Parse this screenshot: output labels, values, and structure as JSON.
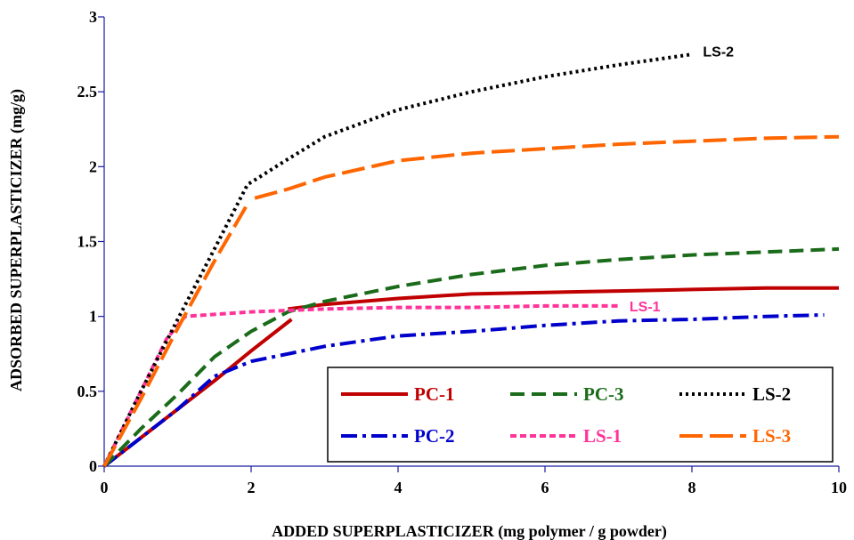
{
  "chart_data": {
    "type": "line",
    "title": "",
    "xlabel": "ADDED SUPERPLASTICIZER (mg polymer / g powder)",
    "ylabel": "ADSORBED SUPERPLASTICIZER (mg/g)",
    "xlim": [
      0,
      10
    ],
    "ylim": [
      0,
      3
    ],
    "xticks": [
      "0",
      "2",
      "4",
      "6",
      "8",
      "10"
    ],
    "yticks": [
      "0",
      "0.5",
      "1",
      "1.5",
      "2",
      "2.5",
      "3"
    ],
    "grid": false,
    "legend_position": "bottom-right",
    "series": [
      {
        "name": "PC-1",
        "color": "#c00000",
        "dash": "solid",
        "segments": [
          [
            [
              0,
              0
            ],
            [
              0.5,
              0.19
            ],
            [
              1.0,
              0.38
            ],
            [
              1.5,
              0.57
            ],
            [
              2.0,
              0.77
            ],
            [
              2.55,
              0.98
            ]
          ],
          [
            [
              2.5,
              1.05
            ],
            [
              3.0,
              1.08
            ],
            [
              4.0,
              1.12
            ],
            [
              5.0,
              1.15
            ],
            [
              6.0,
              1.16
            ],
            [
              7.0,
              1.17
            ],
            [
              8.0,
              1.18
            ],
            [
              9.0,
              1.19
            ],
            [
              10.0,
              1.19
            ]
          ]
        ]
      },
      {
        "name": "PC-2",
        "color": "#0000cc",
        "dash": "dashdot",
        "segments": [
          [
            [
              0,
              0
            ],
            [
              0.5,
              0.19
            ],
            [
              1.0,
              0.38
            ],
            [
              1.5,
              0.6
            ],
            [
              2.0,
              0.7
            ],
            [
              2.5,
              0.75
            ],
            [
              3.0,
              0.8
            ],
            [
              4.0,
              0.87
            ],
            [
              5.0,
              0.9
            ],
            [
              6.0,
              0.94
            ],
            [
              7.0,
              0.97
            ],
            [
              8.0,
              0.98
            ],
            [
              9.0,
              1.0
            ],
            [
              9.8,
              1.01
            ]
          ]
        ]
      },
      {
        "name": "PC-3",
        "color": "#1a6b1a",
        "dash": "dashed",
        "segments": [
          [
            [
              0,
              0
            ],
            [
              0.5,
              0.25
            ],
            [
              1.0,
              0.48
            ],
            [
              1.5,
              0.73
            ],
            [
              2.0,
              0.9
            ],
            [
              2.5,
              1.03
            ],
            [
              3.0,
              1.1
            ],
            [
              4.0,
              1.2
            ],
            [
              5.0,
              1.28
            ],
            [
              6.0,
              1.34
            ],
            [
              7.0,
              1.38
            ],
            [
              8.0,
              1.41
            ],
            [
              9.0,
              1.43
            ],
            [
              10.0,
              1.45
            ]
          ]
        ]
      },
      {
        "name": "LS-1",
        "color": "#ff3399",
        "dash": "short-dashed",
        "segments": [
          [
            [
              0,
              0
            ],
            [
              0.3,
              0.3
            ],
            [
              0.6,
              0.6
            ],
            [
              0.85,
              0.85
            ],
            [
              1.1,
              1.0
            ],
            [
              2.0,
              1.03
            ],
            [
              3.0,
              1.05
            ],
            [
              4.0,
              1.06
            ],
            [
              5.0,
              1.06
            ],
            [
              6.0,
              1.07
            ],
            [
              7.0,
              1.07
            ]
          ]
        ]
      },
      {
        "name": "LS-2",
        "color": "#000000",
        "dash": "dotted",
        "segments": [
          [
            [
              0,
              0
            ],
            [
              0.5,
              0.5
            ],
            [
              1.0,
              0.98
            ],
            [
              1.5,
              1.45
            ],
            [
              1.95,
              1.88
            ],
            [
              2.5,
              2.05
            ],
            [
              3.0,
              2.2
            ],
            [
              4.0,
              2.38
            ],
            [
              5.0,
              2.5
            ],
            [
              6.0,
              2.6
            ],
            [
              7.0,
              2.68
            ],
            [
              8.0,
              2.75
            ]
          ]
        ]
      },
      {
        "name": "LS-3",
        "color": "#ff6600",
        "dash": "long-dashed",
        "segments": [
          [
            [
              0,
              0
            ],
            [
              0.5,
              0.45
            ],
            [
              1.0,
              0.92
            ],
            [
              1.5,
              1.37
            ],
            [
              1.95,
              1.75
            ]
          ],
          [
            [
              2.05,
              1.79
            ],
            [
              2.5,
              1.85
            ],
            [
              3.0,
              1.93
            ],
            [
              4.0,
              2.04
            ],
            [
              5.0,
              2.09
            ],
            [
              6.0,
              2.12
            ],
            [
              7.0,
              2.15
            ],
            [
              8.0,
              2.17
            ],
            [
              9.0,
              2.19
            ],
            [
              10.0,
              2.2
            ]
          ]
        ]
      }
    ],
    "annotations": [
      {
        "text": "LS-2",
        "x": 8.15,
        "y": 2.77,
        "color": "#000000"
      },
      {
        "text": "LS-1",
        "x": 7.15,
        "y": 1.07,
        "color": "#ff3399"
      }
    ]
  }
}
